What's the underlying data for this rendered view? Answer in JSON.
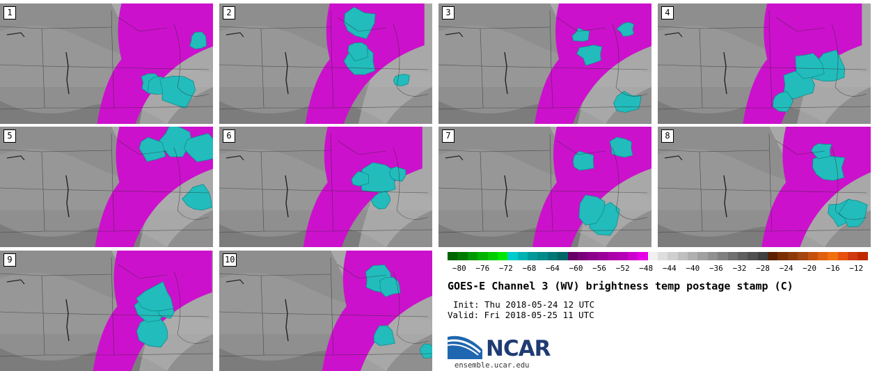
{
  "panels": [
    "1",
    "2",
    "3",
    "4",
    "5",
    "6",
    "7",
    "8",
    "9",
    "10"
  ],
  "colorbar": {
    "colors": [
      "#006400",
      "#007a00",
      "#009900",
      "#00b300",
      "#00cc00",
      "#00e600",
      "#00cccc",
      "#00b3b3",
      "#009999",
      "#008b8b",
      "#007777",
      "#006666",
      "#660066",
      "#7a007a",
      "#8b008b",
      "#990099",
      "#aa00aa",
      "#b300b3",
      "#cc00cc",
      "#e600e6",
      "#f0f0f0",
      "#dedede",
      "#cfcfcf",
      "#bfbfbf",
      "#b0b0b0",
      "#a0a0a0",
      "#909090",
      "#808080",
      "#707070",
      "#606060",
      "#505050",
      "#404040",
      "#5a2000",
      "#7a2e00",
      "#8b3a0a",
      "#a34512",
      "#c45010",
      "#e06010",
      "#f07010",
      "#e85010",
      "#d03a10",
      "#c02a00"
    ],
    "ticks": [
      "−80",
      "−76",
      "−72",
      "−68",
      "−64",
      "−60",
      "−56",
      "−52",
      "−48",
      "−44",
      "−40",
      "−36",
      "−32",
      "−28",
      "−24",
      "−20",
      "−16",
      "−12"
    ],
    "min": -82,
    "max": -10,
    "colors_note": ""
  },
  "title": "GOES-E Channel 3 (WV) brightness temp postage stamp (C)",
  "init": "Init: Thu 2018-05-24 12 UTC",
  "valid": "Valid: Fri 2018-05-25 11 UTC",
  "logo": {
    "word": "NCAR",
    "site": "ensemble.ucar.edu"
  },
  "map_colors": {
    "magenta": "#cc11cc",
    "cyan": "#22bcbc",
    "cyan_dark": "#118b8b",
    "gray_dark": "#6e6e6e",
    "gray_mid": "#8e8e8e",
    "gray_light": "#bdbdbd"
  }
}
